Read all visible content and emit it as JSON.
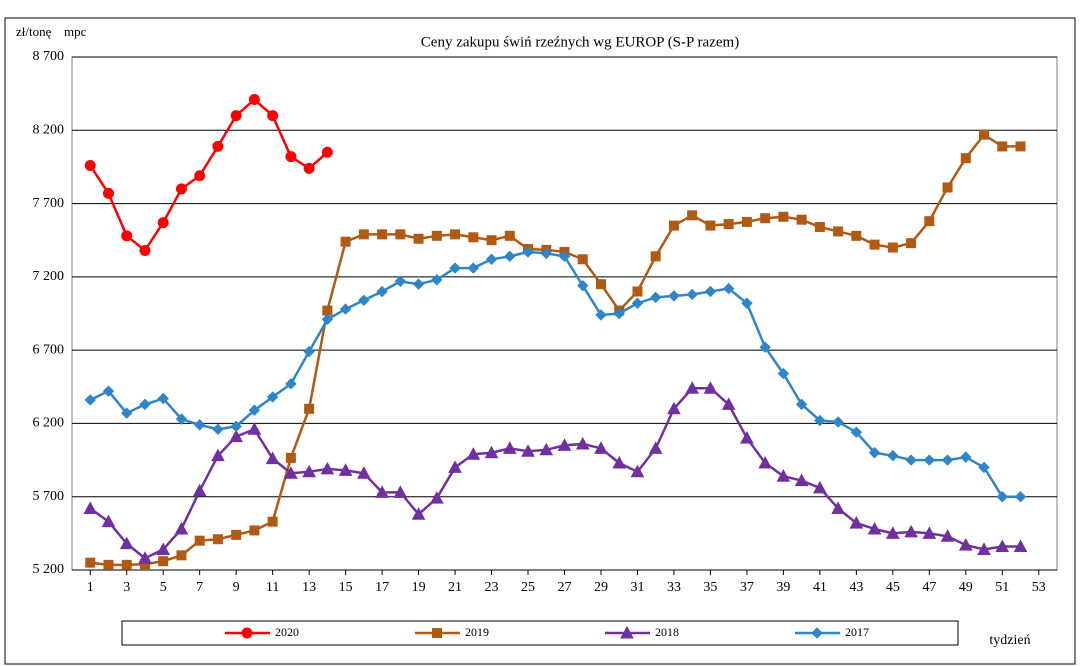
{
  "chart_data": {
    "type": "line",
    "title": "Ceny zakupu świń rzeźnych wg EUROP (S-P razem)",
    "y_unit_label": "zł/tonę",
    "y_unit_label_2": "mpc",
    "x_label": "tydzień",
    "x": [
      1,
      2,
      3,
      4,
      5,
      6,
      7,
      8,
      9,
      10,
      11,
      12,
      13,
      14,
      15,
      16,
      17,
      18,
      19,
      20,
      21,
      22,
      23,
      24,
      25,
      26,
      27,
      28,
      29,
      30,
      31,
      32,
      33,
      34,
      35,
      36,
      37,
      38,
      39,
      40,
      41,
      42,
      43,
      44,
      45,
      46,
      47,
      48,
      49,
      50,
      51,
      52
    ],
    "xlim": [
      0,
      54
    ],
    "xticks": [
      1,
      3,
      5,
      7,
      9,
      11,
      13,
      15,
      17,
      19,
      21,
      23,
      25,
      27,
      29,
      31,
      33,
      35,
      37,
      39,
      41,
      43,
      45,
      47,
      49,
      51,
      53
    ],
    "ylim": [
      5200,
      8700
    ],
    "yticks": [
      {
        "value": 5200,
        "label": "5 200"
      },
      {
        "value": 5700,
        "label": "5 700"
      },
      {
        "value": 6200,
        "label": "6 200"
      },
      {
        "value": 6700,
        "label": "6 700"
      },
      {
        "value": 7200,
        "label": "7 200"
      },
      {
        "value": 7700,
        "label": "7 700"
      },
      {
        "value": 8200,
        "label": "8 200"
      },
      {
        "value": 8700,
        "label": "8 700"
      }
    ],
    "grid": true,
    "legend": "bottom",
    "series": [
      {
        "name": "2020",
        "color": "#ff0000",
        "marker": "circle",
        "values": [
          7960,
          7770,
          7480,
          7380,
          7570,
          7800,
          7890,
          8090,
          8300,
          8410,
          8300,
          8020,
          7940,
          8050,
          null,
          null,
          null,
          null,
          null,
          null,
          null,
          null,
          null,
          null,
          null,
          null,
          null,
          null,
          null,
          null,
          null,
          null,
          null,
          null,
          null,
          null,
          null,
          null,
          null,
          null,
          null,
          null,
          null,
          null,
          null,
          null,
          null,
          null,
          null,
          null,
          null,
          null
        ]
      },
      {
        "name": "2019",
        "color": "#b05a14",
        "marker": "square",
        "values": [
          5250,
          5235,
          5235,
          5240,
          5260,
          5300,
          5400,
          5410,
          5440,
          5470,
          5530,
          5965,
          6300,
          6970,
          7440,
          7490,
          7490,
          7490,
          7460,
          7480,
          7490,
          7470,
          7450,
          7480,
          7390,
          7384,
          7370,
          7320,
          7150,
          6970,
          7100,
          7340,
          7550,
          7620,
          7550,
          7560,
          7575,
          7600,
          7610,
          7590,
          7540,
          7510,
          7480,
          7420,
          7400,
          7430,
          7580,
          7810,
          8010,
          8170,
          8090,
          8090
        ]
      },
      {
        "name": "2018",
        "color": "#7030a0",
        "marker": "triangle",
        "values": [
          5620,
          5530,
          5380,
          5280,
          5340,
          5480,
          5740,
          5980,
          6110,
          6160,
          5960,
          5860,
          5870,
          5890,
          5880,
          5860,
          5730,
          5730,
          5580,
          5690,
          5900,
          5990,
          6000,
          6030,
          6010,
          6020,
          6050,
          6060,
          6030,
          5930,
          5870,
          6030,
          6300,
          6440,
          6440,
          6330,
          6100,
          5930,
          5840,
          5810,
          5760,
          5620,
          5520,
          5480,
          5450,
          5460,
          5450,
          5430,
          5370,
          5340,
          5360,
          5360
        ]
      },
      {
        "name": "2017",
        "color": "#2e86c8",
        "marker": "diamond",
        "values": [
          6360,
          6420,
          6270,
          6330,
          6370,
          6230,
          6190,
          6160,
          6180,
          6290,
          6380,
          6470,
          6690,
          6910,
          6980,
          7040,
          7100,
          7170,
          7150,
          7180,
          7260,
          7260,
          7320,
          7340,
          7370,
          7360,
          7340,
          7140,
          6940,
          6950,
          7020,
          7060,
          7070,
          7080,
          7100,
          7120,
          7020,
          6720,
          6540,
          6330,
          6220,
          6210,
          6140,
          6000,
          5980,
          5950,
          5950,
          5950,
          5970,
          5900,
          5700,
          5700
        ]
      }
    ]
  }
}
